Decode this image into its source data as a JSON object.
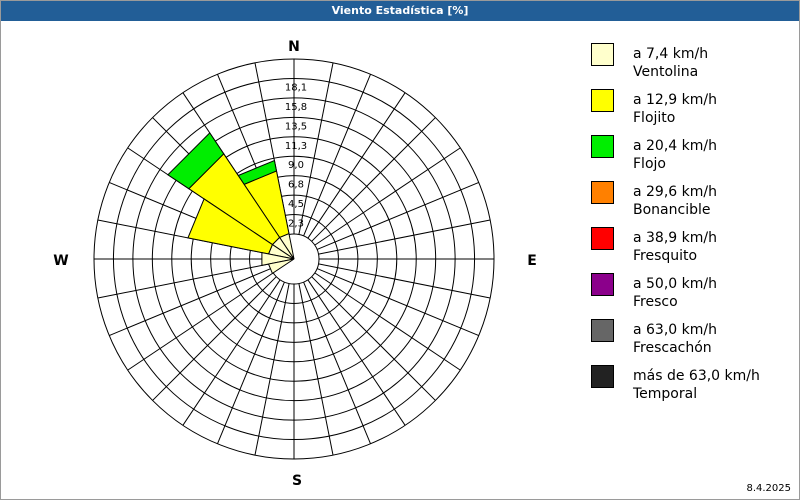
{
  "window": {
    "title": "Viento Estadística [%]"
  },
  "footer": {
    "date": "8.4.2025"
  },
  "legend": [
    {
      "line1": "a 7,4 km/h",
      "line2": "Ventolina",
      "color": "#ffffcc"
    },
    {
      "line1": "a 12,9 km/h",
      "line2": "Flojito",
      "color": "#ffff00"
    },
    {
      "line1": "a 20,4 km/h",
      "line2": "Flojo",
      "color": "#00ee00"
    },
    {
      "line1": "a 29,6 km/h",
      "line2": "Bonancible",
      "color": "#ff8000"
    },
    {
      "line1": "a 38,9 km/h",
      "line2": "Fresquito",
      "color": "#ff0000"
    },
    {
      "line1": "a 50,0 km/h",
      "line2": "Fresco",
      "color": "#8b008b"
    },
    {
      "line1": "a 63,0 km/h",
      "line2": "Frescachón",
      "color": "#666666"
    },
    {
      "line1": "más de 63,0 km/h",
      "line2": "Temporal",
      "color": "#222222"
    }
  ],
  "chart_data": {
    "type": "wind-rose",
    "compass": [
      "N",
      "E",
      "S",
      "W"
    ],
    "radial_ticks": [
      "2,3",
      "4,5",
      "6,8",
      "9,0",
      "11,3",
      "13,5",
      "15,8",
      "18,1"
    ],
    "radial_max": 18.1,
    "sector_count": 16,
    "directions": [
      "N",
      "NNE",
      "NE",
      "ENE",
      "E",
      "ESE",
      "SE",
      "SSE",
      "S",
      "SSW",
      "SW",
      "WSW",
      "W",
      "WNW",
      "NW",
      "NNW"
    ],
    "series_colors": [
      "#ffffcc",
      "#ffff00",
      "#00ee00"
    ],
    "sectors": [
      {
        "dir": "NNW",
        "segments": [
          0.1,
          6.6,
          1.1
        ]
      },
      {
        "dir": "NW",
        "segments": [
          0.1,
          10.4,
          2.6
        ]
      },
      {
        "dir": "WNW",
        "segments": [
          0.1,
          8.5,
          0.0
        ]
      },
      {
        "dir": "W",
        "segments": [
          0.8,
          0.0,
          0.0
        ]
      },
      {
        "dir": "WSW",
        "segments": [
          0.1,
          0.0,
          0.0
        ]
      }
    ]
  }
}
